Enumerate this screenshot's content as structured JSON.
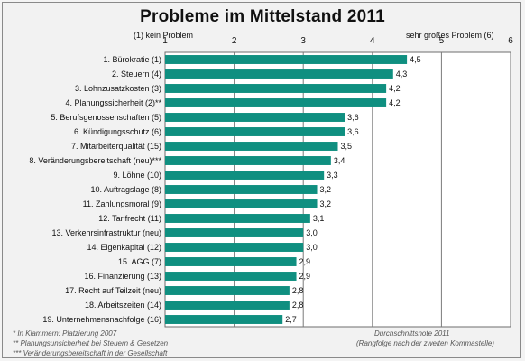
{
  "chart_data": {
    "type": "bar",
    "orientation": "horizontal",
    "title": "Probleme im Mittelstand 2011",
    "scale_low_label": "(1) kein Problem",
    "scale_high_label": "sehr großes Problem (6)",
    "xlim": [
      1,
      6
    ],
    "ticks": [
      "1",
      "2",
      "3",
      "4",
      "5",
      "6"
    ],
    "grid": true,
    "bar_color": "#0f8f80",
    "categories": [
      "1. Bürokratie (1)",
      "2. Steuern (4)",
      "3. Lohnzusatzkosten (3)",
      "4. Planungssicherheit (2)**",
      "5. Berufsgenossenschaften (5)",
      "6. Kündigungsschutz (6)",
      "7. Mitarbeiterqualität (15)",
      "8. Veränderungsbereitschaft (neu)***",
      "9. Löhne (10)",
      "10. Auftragslage (8)",
      "11. Zahlungsmoral (9)",
      "12. Tarifrecht (11)",
      "13. Verkehrsinfrastruktur (neu)",
      "14. Eigenkapital (12)",
      "15. AGG (7)",
      "16. Finanzierung (13)",
      "17. Recht auf Teilzeit (neu)",
      "18. Arbeitszeiten (14)",
      "19. Unternehmensnachfolge (16)"
    ],
    "values": [
      4.5,
      4.3,
      4.2,
      4.2,
      3.6,
      3.6,
      3.5,
      3.4,
      3.3,
      3.2,
      3.2,
      3.1,
      3.0,
      3.0,
      2.9,
      2.9,
      2.8,
      2.8,
      2.7
    ],
    "value_labels": [
      "4,5",
      "4,3",
      "4,2",
      "4,2",
      "3,6",
      "3,6",
      "3,5",
      "3,4",
      "3,3",
      "3,2",
      "3,2",
      "3,1",
      "3,0",
      "3,0",
      "2,9",
      "2,9",
      "2,8",
      "2,8",
      "2,7"
    ]
  },
  "footnotes": {
    "fn1": "*   In Klammern: Platzierung 2007",
    "fn2": "**  Planungsunsicherheit bei Steuern & Gesetzen",
    "fn3": "*** Veränderungsbereitschaft in der Gesellschaft",
    "note1": "Durchschnittsnote 2011",
    "note2": "(Rangfolge nach der zweiten Kommastelle)"
  }
}
